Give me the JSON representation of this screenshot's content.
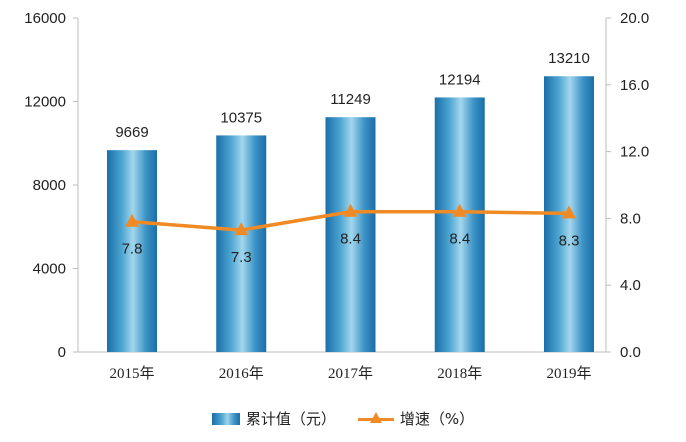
{
  "chart_data": {
    "type": "bar",
    "categories": [
      "2015年",
      "2016年",
      "2017年",
      "2018年",
      "2019年"
    ],
    "series": [
      {
        "name": "累计值（元）",
        "type": "bar",
        "axis": "left",
        "values": [
          9669,
          10375,
          11249,
          12194,
          13210
        ]
      },
      {
        "name": "增速（%）",
        "type": "line",
        "axis": "right",
        "values": [
          7.8,
          7.3,
          8.4,
          8.4,
          8.3
        ]
      }
    ],
    "left_axis": {
      "ylim": [
        0,
        16000
      ],
      "ticks": [
        "0",
        "4000",
        "8000",
        "12000",
        "16000"
      ]
    },
    "right_axis": {
      "ylim": [
        0,
        20
      ],
      "ticks": [
        "0.0",
        "4.0",
        "8.0",
        "12.0",
        "16.0",
        "20.0"
      ]
    },
    "bar_labels": [
      "9669",
      "10375",
      "11249",
      "12194",
      "13210"
    ],
    "line_labels": [
      "7.8",
      "7.3",
      "8.4",
      "8.4",
      "8.3"
    ],
    "grid": false,
    "legend": {
      "position": "bottom",
      "items": [
        "累计值（元）",
        "增速（%）"
      ]
    },
    "colors": {
      "bar": "#2a82c0",
      "line": "#f08a24"
    }
  }
}
